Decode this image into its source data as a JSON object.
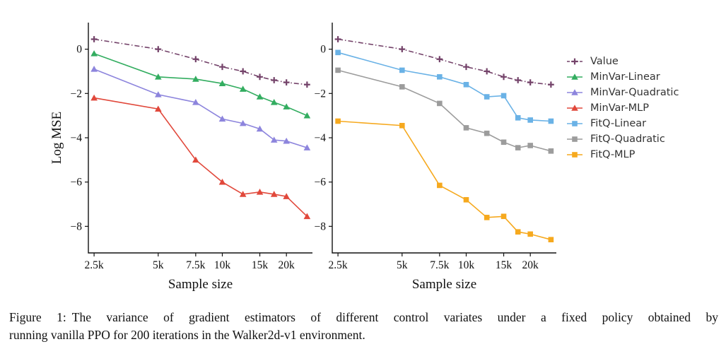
{
  "figure": {
    "caption": {
      "label": "Figure 1:",
      "line1": "The variance of gradient estimators of different control variates under a fixed policy obtained by",
      "line2": "running vanilla PPO for 200 iterations in the Walker2d-v1 environment."
    }
  },
  "legend": {
    "position": "right",
    "items": [
      {
        "label": "Value",
        "color": "#74436a",
        "marker": "plus",
        "line": "dashdot"
      },
      {
        "label": "MinVar-Linear",
        "color": "#33ad60",
        "marker": "triangle",
        "line": "solid"
      },
      {
        "label": "MinVar-Quadratic",
        "color": "#8d85dd",
        "marker": "triangle",
        "line": "solid"
      },
      {
        "label": "MinVar-MLP",
        "color": "#e1483b",
        "marker": "triangle",
        "line": "solid"
      },
      {
        "label": "FitQ-Linear",
        "color": "#6ab2e6",
        "marker": "square",
        "line": "solid"
      },
      {
        "label": "FitQ-Quadratic",
        "color": "#9c9c9c",
        "marker": "square",
        "line": "solid"
      },
      {
        "label": "FitQ-MLP",
        "color": "#f6a91e",
        "marker": "square",
        "line": "solid"
      }
    ]
  },
  "chart_data": [
    {
      "type": "line",
      "panel": "left",
      "title": "",
      "xlabel": "Sample size",
      "ylabel": "Log MSE",
      "xscale": "log",
      "grid": false,
      "ylim": [
        -9.2,
        1.2
      ],
      "x": [
        2500,
        5000,
        7500,
        10000,
        12500,
        15000,
        17500,
        20000,
        25000
      ],
      "xticks": [
        {
          "v": 2500,
          "label": "2.5k"
        },
        {
          "v": 5000,
          "label": "5k"
        },
        {
          "v": 7500,
          "label": "7.5k"
        },
        {
          "v": 10000,
          "label": "10k"
        },
        {
          "v": 15000,
          "label": "15k"
        },
        {
          "v": 20000,
          "label": "20k"
        }
      ],
      "yticks": [
        {
          "v": 0,
          "label": "0"
        },
        {
          "v": -2,
          "label": "−2"
        },
        {
          "v": -4,
          "label": "−4"
        },
        {
          "v": -6,
          "label": "−6"
        },
        {
          "v": -8,
          "label": "−8"
        }
      ],
      "series": [
        {
          "name": "Value",
          "color": "#74436a",
          "marker": "plus",
          "line": "dashdot",
          "values": [
            0.45,
            0.0,
            -0.45,
            -0.8,
            -1.0,
            -1.25,
            -1.4,
            -1.5,
            -1.6
          ]
        },
        {
          "name": "MinVar-Linear",
          "color": "#33ad60",
          "marker": "triangle",
          "line": "solid",
          "values": [
            -0.2,
            -1.25,
            -1.35,
            -1.55,
            -1.8,
            -2.15,
            -2.4,
            -2.6,
            -3.0
          ]
        },
        {
          "name": "MinVar-Quadratic",
          "color": "#8d85dd",
          "marker": "triangle",
          "line": "solid",
          "values": [
            -0.9,
            -2.05,
            -2.4,
            -3.15,
            -3.35,
            -3.6,
            -4.1,
            -4.15,
            -4.45
          ]
        },
        {
          "name": "MinVar-MLP",
          "color": "#e1483b",
          "marker": "triangle",
          "line": "solid",
          "values": [
            -2.2,
            -2.7,
            -5.0,
            -6.0,
            -6.55,
            -6.45,
            -6.55,
            -6.65,
            -7.55
          ]
        }
      ]
    },
    {
      "type": "line",
      "panel": "right",
      "title": "",
      "xlabel": "Sample size",
      "ylabel": "",
      "xscale": "log",
      "grid": false,
      "ylim": [
        -9.2,
        1.2
      ],
      "x": [
        2500,
        5000,
        7500,
        10000,
        12500,
        15000,
        17500,
        20000,
        25000
      ],
      "xticks": [
        {
          "v": 2500,
          "label": "2.5k"
        },
        {
          "v": 5000,
          "label": "5k"
        },
        {
          "v": 7500,
          "label": "7.5k"
        },
        {
          "v": 10000,
          "label": "10k"
        },
        {
          "v": 15000,
          "label": "15k"
        },
        {
          "v": 20000,
          "label": "20k"
        }
      ],
      "yticks": [
        {
          "v": 0,
          "label": "0"
        },
        {
          "v": -2,
          "label": "−2"
        },
        {
          "v": -4,
          "label": "−4"
        },
        {
          "v": -6,
          "label": "−6"
        },
        {
          "v": -8,
          "label": "−8"
        }
      ],
      "series": [
        {
          "name": "Value",
          "color": "#74436a",
          "marker": "plus",
          "line": "dashdot",
          "values": [
            0.45,
            0.0,
            -0.45,
            -0.8,
            -1.0,
            -1.25,
            -1.4,
            -1.5,
            -1.6
          ]
        },
        {
          "name": "FitQ-Linear",
          "color": "#6ab2e6",
          "marker": "square",
          "line": "solid",
          "values": [
            -0.15,
            -0.95,
            -1.25,
            -1.6,
            -2.15,
            -2.1,
            -3.1,
            -3.2,
            -3.25
          ]
        },
        {
          "name": "FitQ-Quadratic",
          "color": "#9c9c9c",
          "marker": "square",
          "line": "solid",
          "values": [
            -0.95,
            -1.7,
            -2.45,
            -3.55,
            -3.8,
            -4.2,
            -4.45,
            -4.35,
            -4.6
          ]
        },
        {
          "name": "FitQ-MLP",
          "color": "#f6a91e",
          "marker": "square",
          "line": "solid",
          "values": [
            -3.25,
            -3.45,
            -6.15,
            -6.8,
            -7.6,
            -7.55,
            -8.25,
            -8.35,
            -8.6
          ]
        }
      ]
    }
  ]
}
